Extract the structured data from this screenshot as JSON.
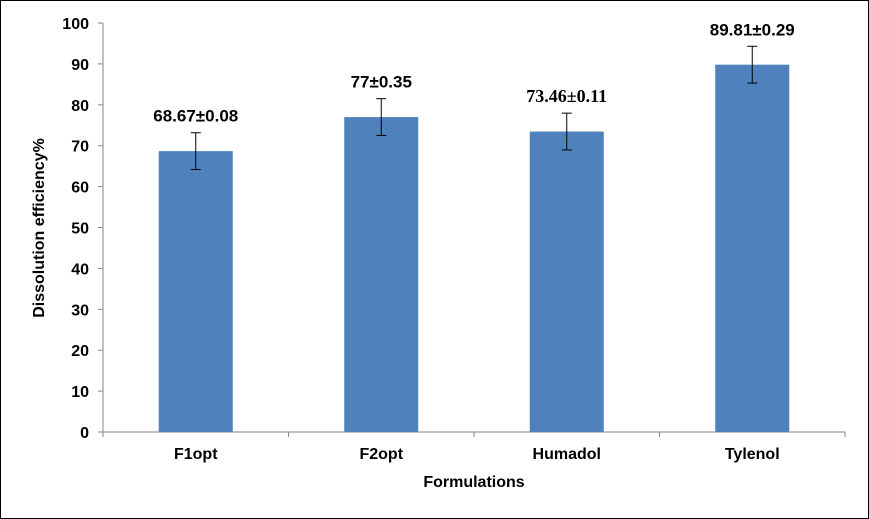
{
  "chart_data": {
    "type": "bar",
    "title": "",
    "xlabel": "Formulations",
    "ylabel": "Dissolution efficiency%",
    "ylim": [
      0,
      100
    ],
    "yticks": [
      0,
      10,
      20,
      30,
      40,
      50,
      60,
      70,
      80,
      90,
      100
    ],
    "categories": [
      "F1opt",
      "F2opt",
      "Humadol",
      "Tylenol"
    ],
    "values": [
      68.67,
      77,
      73.46,
      89.81
    ],
    "errors_drawn": [
      4.5,
      4.5,
      4.5,
      4.5
    ],
    "data_labels": [
      "68.67±0.08",
      "77±0.35",
      "73.46±0.11",
      "89.81±0.29"
    ],
    "bar_color": "#4F81BD",
    "grid": false,
    "legend": "none"
  }
}
